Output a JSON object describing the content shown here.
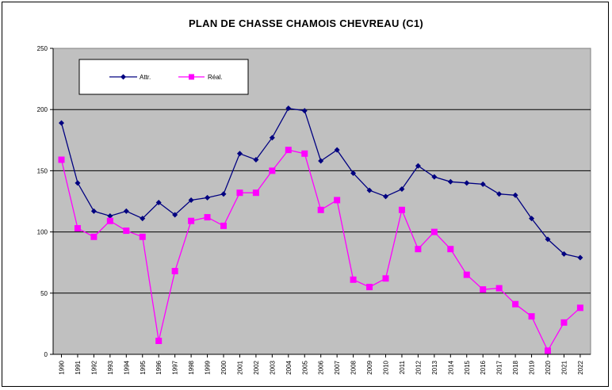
{
  "chart_data": {
    "type": "line",
    "title": "PLAN DE CHASSE CHAMOIS CHEVREAU  (C1)",
    "xlabel": "",
    "ylabel": "",
    "ylim": [
      0,
      250
    ],
    "yticks": [
      0,
      50,
      100,
      150,
      200,
      250
    ],
    "grid": true,
    "legend_position": "top-left",
    "plot_background": "#c0c0c0",
    "categories": [
      "1990",
      "1991",
      "1992",
      "1993",
      "1994",
      "1995",
      "1996",
      "1997",
      "1998",
      "1999",
      "2000",
      "2001",
      "2002",
      "2003",
      "2004",
      "2005",
      "2006",
      "2007",
      "2008",
      "2009",
      "2010",
      "2011",
      "2012",
      "2013",
      "2014",
      "2015",
      "2016",
      "2017",
      "2018",
      "2019",
      "2020",
      "2021",
      "2022"
    ],
    "series": [
      {
        "name": "Attr.",
        "color": "#000080",
        "marker": "diamond",
        "values": [
          189,
          140,
          117,
          113,
          117,
          111,
          124,
          114,
          126,
          128,
          131,
          164,
          159,
          177,
          201,
          199,
          158,
          167,
          148,
          134,
          129,
          135,
          154,
          145,
          141,
          140,
          139,
          131,
          130,
          111,
          94,
          82,
          79
        ]
      },
      {
        "name": "Réal.",
        "color": "#ff00ff",
        "marker": "square",
        "values": [
          159,
          103,
          96,
          109,
          101,
          96,
          11,
          68,
          109,
          112,
          105,
          132,
          132,
          150,
          167,
          164,
          118,
          126,
          61,
          55,
          62,
          118,
          86,
          100,
          86,
          65,
          53,
          54,
          41,
          31,
          3,
          26,
          38
        ]
      }
    ]
  }
}
